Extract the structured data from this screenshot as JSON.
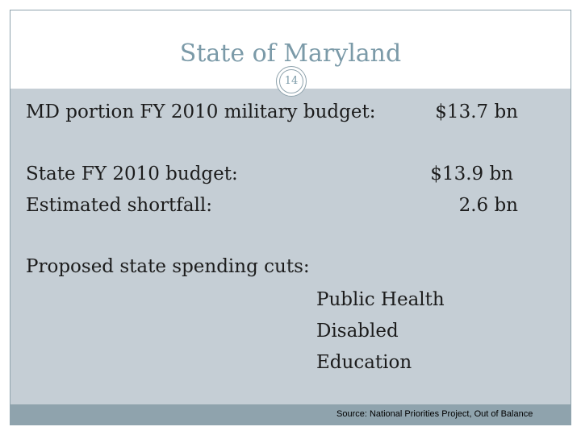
{
  "slide": {
    "title": "State of Maryland",
    "page_number": "14"
  },
  "content": {
    "military_budget": {
      "label": "MD portion FY 2010 military budget:",
      "value": "$13.7 bn"
    },
    "state_budget": {
      "label": "State FY 2010 budget:",
      "value": "$13.9 bn"
    },
    "shortfall": {
      "label": "Estimated shortfall:",
      "value": "2.6 bn"
    },
    "cuts_heading": "Proposed state spending cuts:",
    "cuts": [
      "Public Health",
      "Disabled",
      "Education"
    ]
  },
  "footer": {
    "source": "Source: National Priorities Project, Out of Balance"
  },
  "colors": {
    "title": "#7b9aa8",
    "content_background": "#c5ced5",
    "footer_bar": "#8fa3ad",
    "text": "#1c1c1c"
  }
}
